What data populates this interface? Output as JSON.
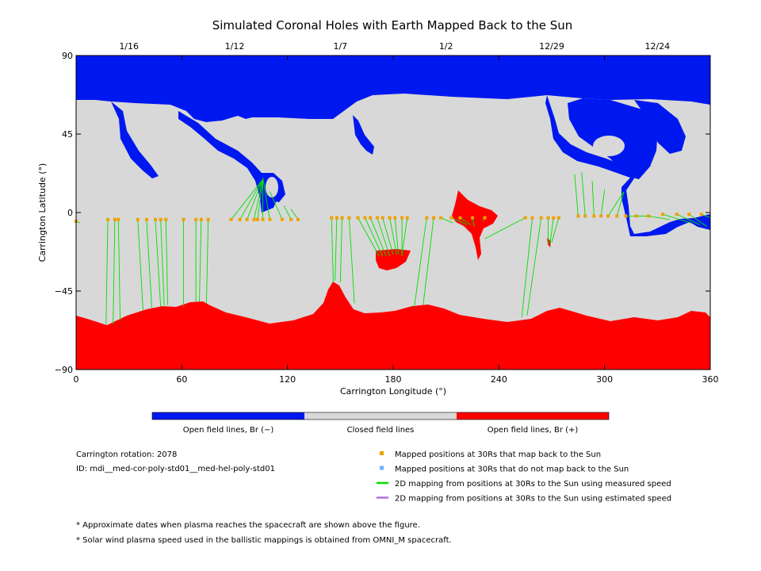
{
  "chart_data": {
    "type": "map",
    "title": "Simulated Coronal Holes with Earth Mapped Back to the Sun",
    "xlabel": "Carrington Longitude (°)",
    "ylabel": "Carrington Latitude (°)",
    "xlim": [
      0,
      360
    ],
    "ylim": [
      -90,
      90
    ],
    "xticks": [
      "0",
      "60",
      "120",
      "180",
      "240",
      "300",
      "360"
    ],
    "yticks": [
      "90",
      "45",
      "0",
      "−45",
      "−90"
    ],
    "date_ticks": [
      {
        "label": "1/16",
        "lon": 30
      },
      {
        "label": "1/12",
        "lon": 90
      },
      {
        "label": "1/7",
        "lon": 150
      },
      {
        "label": "1/2",
        "lon": 210
      },
      {
        "label": "12/29",
        "lon": 270
      },
      {
        "label": "12/24",
        "lon": 330
      }
    ],
    "colorbar": [
      {
        "label": "Open field lines, Br (−)",
        "color": "#0018f0"
      },
      {
        "label": "Closed field lines",
        "color": "#d8d8d8"
      },
      {
        "label": "Open field lines, Br (+)",
        "color": "#ff0000"
      }
    ],
    "info": [
      "Carrington rotation: 2078",
      "ID: mdi__med-cor-poly-std01__med-hel-poly-std01"
    ],
    "legend": [
      {
        "label": "Mapped positions at 30Rs that map back to the Sun",
        "color": "#f0a000",
        "kind": "square"
      },
      {
        "label": "Mapped positions at 30Rs that do not map back to the Sun",
        "color": "#70b0ff",
        "kind": "square"
      },
      {
        "label": "2D mapping from positions at 30Rs to the Sun using measured speed",
        "color": "#00e000",
        "kind": "line"
      },
      {
        "label": "2D mapping from positions at 30Rs to the Sun using estimated speed",
        "color": "#b070e0",
        "kind": "line"
      }
    ],
    "footnotes": [
      "* Approximate dates when plasma reaches the spacecraft are shown above the figure.",
      "* Solar wind plasma speed used in the ballistic mappings is obtained from OMNI_M spacecraft."
    ],
    "mappings": [
      {
        "lon": 0,
        "lat": -5,
        "tlon": 2,
        "tlat": -6
      },
      {
        "lon": 18,
        "lat": -4,
        "tlon": 17,
        "tlat": -64
      },
      {
        "lon": 22,
        "lat": -4,
        "tlon": 21,
        "tlat": -64
      },
      {
        "lon": 24,
        "lat": -4,
        "tlon": 25,
        "tlat": -62
      },
      {
        "lon": 35,
        "lat": -4,
        "tlon": 38,
        "tlat": -56
      },
      {
        "lon": 40,
        "lat": -4,
        "tlon": 43,
        "tlat": -55
      },
      {
        "lon": 45,
        "lat": -4,
        "tlon": 48,
        "tlat": -54
      },
      {
        "lon": 48,
        "lat": -4,
        "tlon": 50,
        "tlat": -53
      },
      {
        "lon": 51,
        "lat": -4,
        "tlon": 52,
        "tlat": -53
      },
      {
        "lon": 61,
        "lat": -4,
        "tlon": 61,
        "tlat": -54
      },
      {
        "lon": 68,
        "lat": -4,
        "tlon": 68,
        "tlat": -51
      },
      {
        "lon": 71,
        "lat": -4,
        "tlon": 70,
        "tlat": -51
      },
      {
        "lon": 75,
        "lat": -4,
        "tlon": 74,
        "tlat": -52
      },
      {
        "lon": 88,
        "lat": -4,
        "tlon": 106,
        "tlat": 19
      },
      {
        "lon": 93,
        "lat": -4,
        "tlon": 106,
        "tlat": 19
      },
      {
        "lon": 97,
        "lat": -4,
        "tlon": 106,
        "tlat": 19
      },
      {
        "lon": 101,
        "lat": -4,
        "tlon": 106,
        "tlat": 19
      },
      {
        "lon": 103,
        "lat": -4,
        "tlon": 106,
        "tlat": 19
      },
      {
        "lon": 106,
        "lat": -4,
        "tlon": 106,
        "tlat": 19
      },
      {
        "lon": 110,
        "lat": -4,
        "tlon": 106,
        "tlat": 20
      },
      {
        "lon": 117,
        "lat": -4,
        "tlon": 110,
        "tlat": 12
      },
      {
        "lon": 122,
        "lat": -4,
        "tlon": 118,
        "tlat": 4
      },
      {
        "lon": 126,
        "lat": -4,
        "tlon": 122,
        "tlat": 2
      },
      {
        "lon": 145,
        "lat": -3,
        "tlon": 146,
        "tlat": -40
      },
      {
        "lon": 148,
        "lat": -3,
        "tlon": 147,
        "tlat": -39
      },
      {
        "lon": 151,
        "lat": -3,
        "tlon": 150,
        "tlat": -40
      },
      {
        "lon": 155,
        "lat": -3,
        "tlon": 158,
        "tlat": -52
      },
      {
        "lon": 160,
        "lat": -3,
        "tlon": 172,
        "tlat": -25
      },
      {
        "lon": 164,
        "lat": -3,
        "tlon": 174,
        "tlat": -25
      },
      {
        "lon": 167,
        "lat": -3,
        "tlon": 176,
        "tlat": -25
      },
      {
        "lon": 171,
        "lat": -3,
        "tlon": 178,
        "tlat": -25
      },
      {
        "lon": 174,
        "lat": -3,
        "tlon": 180,
        "tlat": -24
      },
      {
        "lon": 178,
        "lat": -3,
        "tlon": 182,
        "tlat": -24
      },
      {
        "lon": 181,
        "lat": -3,
        "tlon": 183,
        "tlat": -24
      },
      {
        "lon": 185,
        "lat": -3,
        "tlon": 185,
        "tlat": -25
      },
      {
        "lon": 188,
        "lat": -3,
        "tlon": 185,
        "tlat": -24
      },
      {
        "lon": 199,
        "lat": -3,
        "tlon": 192,
        "tlat": -54
      },
      {
        "lon": 203,
        "lat": -3,
        "tlon": 197,
        "tlat": -53
      },
      {
        "lon": 207,
        "lat": -3,
        "tlon": 214,
        "tlat": -6
      },
      {
        "lon": 213,
        "lat": -3,
        "tlon": 222,
        "tlat": -7
      },
      {
        "lon": 218,
        "lat": -3,
        "tlon": 224,
        "tlat": -7
      },
      {
        "lon": 225,
        "lat": -3,
        "tlon": 226,
        "tlat": -8
      },
      {
        "lon": 232,
        "lat": -3,
        "tlon": 231,
        "tlat": -5
      },
      {
        "lon": 255,
        "lat": -3,
        "tlon": 232,
        "tlat": -15
      },
      {
        "lon": 259,
        "lat": -3,
        "tlon": 253,
        "tlat": -60
      },
      {
        "lon": 264,
        "lat": -3,
        "tlon": 256,
        "tlat": -59
      },
      {
        "lon": 268,
        "lat": -3,
        "tlon": 268,
        "tlat": -18
      },
      {
        "lon": 271,
        "lat": -3,
        "tlon": 269,
        "tlat": -18
      },
      {
        "lon": 274,
        "lat": -3,
        "tlon": 270,
        "tlat": -17
      },
      {
        "lon": 285,
        "lat": -2,
        "tlon": 283,
        "tlat": 22
      },
      {
        "lon": 289,
        "lat": -2,
        "tlon": 287,
        "tlat": 23
      },
      {
        "lon": 294,
        "lat": -2,
        "tlon": 293,
        "tlat": 18
      },
      {
        "lon": 298,
        "lat": -2,
        "tlon": 300,
        "tlat": 13
      },
      {
        "lon": 302,
        "lat": -2,
        "tlon": 311,
        "tlat": 12
      },
      {
        "lon": 307,
        "lat": -2,
        "tlon": 311,
        "tlat": 12
      },
      {
        "lon": 312,
        "lat": -2,
        "tlon": 325,
        "tlat": -2
      },
      {
        "lon": 318,
        "lat": -2,
        "tlon": 325,
        "tlat": -2
      },
      {
        "lon": 325,
        "lat": -2,
        "tlon": 337,
        "tlat": -4
      },
      {
        "lon": 333,
        "lat": -1,
        "tlon": 349,
        "tlat": -6
      },
      {
        "lon": 341,
        "lat": -1,
        "tlon": 354,
        "tlat": -7
      },
      {
        "lon": 348,
        "lat": -1,
        "tlon": 358,
        "tlat": -8
      },
      {
        "lon": 355,
        "lat": -1,
        "tlon": 360,
        "tlat": -3
      }
    ]
  }
}
